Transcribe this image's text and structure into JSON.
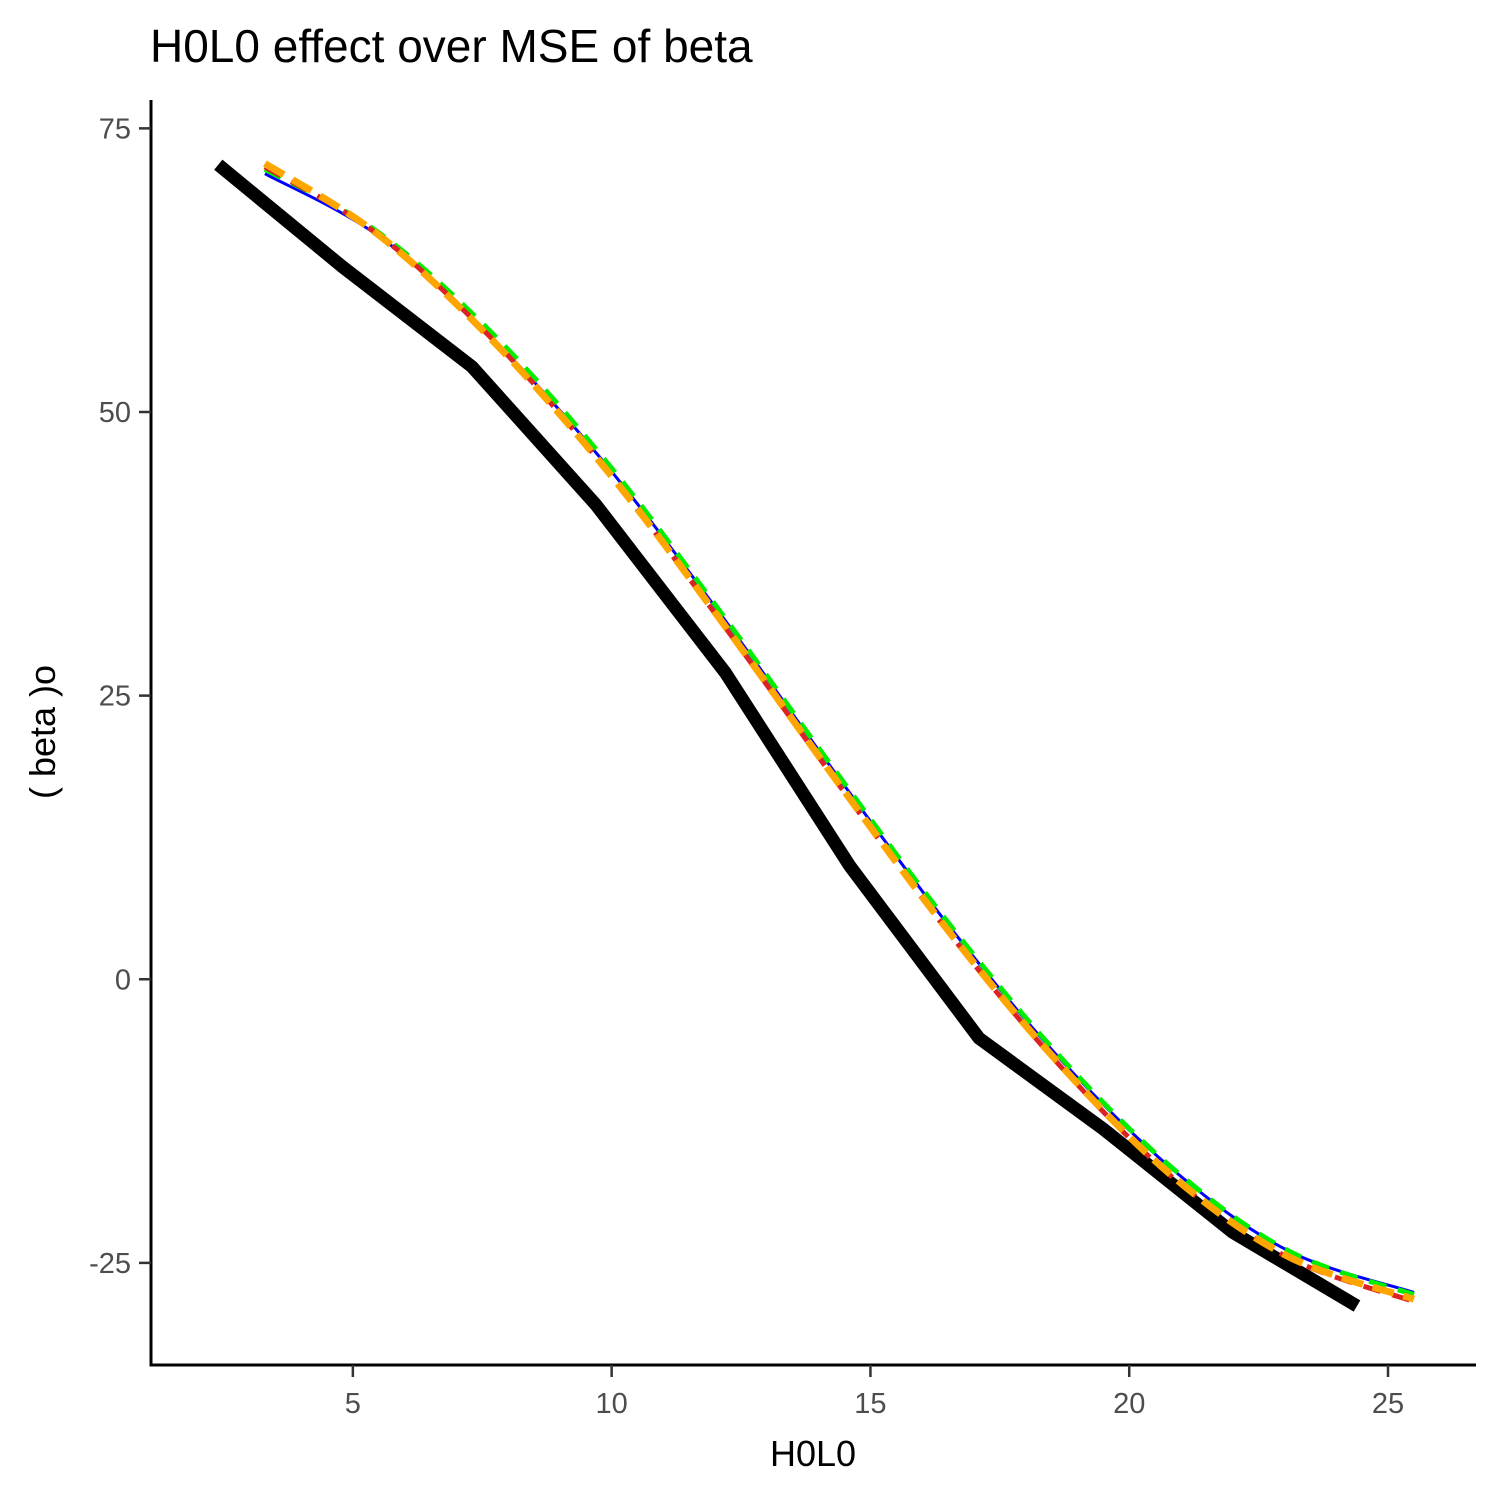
{
  "chart_data": {
    "type": "line",
    "title": "H0L0 effect over MSE of  beta",
    "xlabel": "H0L0",
    "ylabel": "( beta )o",
    "xlim": [
      1.1,
      26.7
    ],
    "ylim": [
      -34,
      77.5
    ],
    "x_ticks": [
      5,
      10,
      15,
      20,
      25
    ],
    "y_ticks": [
      -25,
      0,
      25,
      50,
      75
    ],
    "x_tick_labels": [
      "5",
      "10",
      "15",
      "20",
      "25"
    ],
    "y_tick_labels": [
      "-25",
      "0",
      "25",
      "50",
      "75"
    ],
    "grid": false,
    "legend": "none",
    "series": [
      {
        "color": "#000000",
        "style": "solid-thick",
        "x": [
          2.4,
          4.8,
          7.3,
          9.7,
          12.2,
          14.6,
          17.1,
          19.5,
          22.0,
          24.4
        ],
        "y": [
          71.8,
          62.8,
          54.0,
          41.8,
          27.0,
          10.0,
          -5.2,
          -13.2,
          -22.3,
          -28.8
        ]
      },
      {
        "color": "#0000ff",
        "style": "solid-thin",
        "x": [
          3.3,
          5.5,
          7.7,
          9.9,
          12.1,
          14.3,
          16.5,
          18.7,
          20.9,
          23.1,
          25.5
        ],
        "y": [
          71.0,
          65.5,
          56.5,
          45.3,
          32.2,
          18.3,
          4.8,
          -7.2,
          -17.0,
          -24.0,
          -27.6
        ]
      },
      {
        "color": "#00ee00",
        "style": "dashed",
        "x": [
          3.3,
          5.5,
          7.7,
          9.9,
          12.1,
          14.3,
          16.5,
          18.7,
          20.9,
          23.1,
          25.5
        ],
        "y": [
          71.4,
          65.8,
          56.9,
          45.6,
          32.4,
          18.5,
          5.0,
          -7.0,
          -16.9,
          -24.0,
          -27.8
        ]
      },
      {
        "color": "#dd2222",
        "style": "dashed",
        "x": [
          3.3,
          5.5,
          7.7,
          9.9,
          12.1,
          14.3,
          16.5,
          18.7,
          20.9,
          23.1,
          25.5
        ],
        "y": [
          71.6,
          65.6,
          56.4,
          44.9,
          31.6,
          17.7,
          4.2,
          -7.8,
          -17.7,
          -24.6,
          -28.4
        ]
      },
      {
        "color": "#ffa500",
        "style": "dashed-thick",
        "x": [
          3.3,
          5.5,
          7.7,
          9.9,
          12.1,
          14.3,
          16.5,
          18.7,
          20.9,
          23.1,
          25.5
        ],
        "y": [
          71.9,
          65.6,
          56.3,
          44.9,
          31.7,
          17.8,
          4.3,
          -7.7,
          -17.6,
          -24.5,
          -28.2
        ]
      }
    ]
  }
}
